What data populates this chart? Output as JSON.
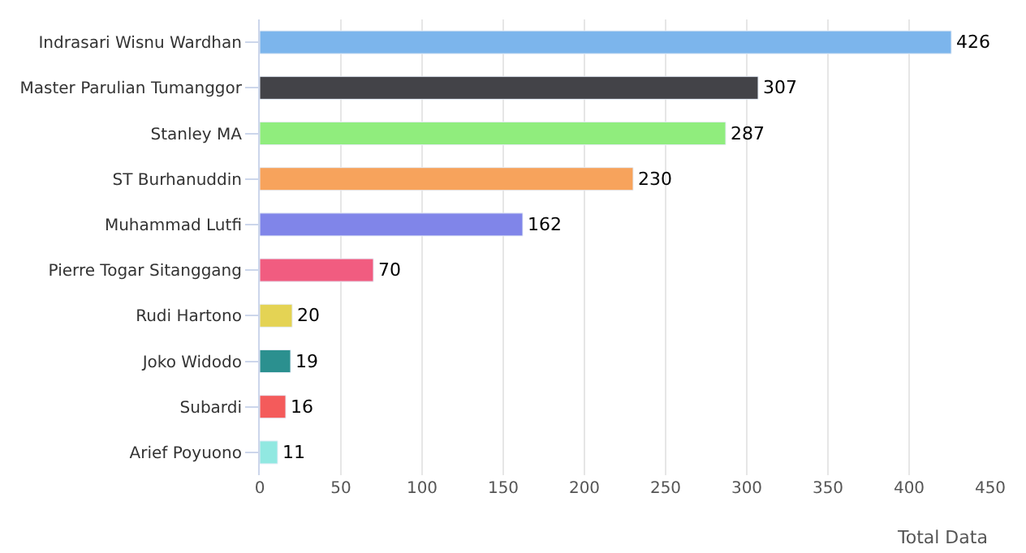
{
  "chart_data": {
    "type": "bar",
    "orientation": "horizontal",
    "xlabel": "Total Data",
    "categories": [
      "Indrasari Wisnu Wardhan",
      "Master Parulian Tumanggor",
      "Stanley MA",
      "ST Burhanuddin",
      "Muhammad Lutfi",
      "Pierre Togar Sitanggang",
      "Rudi Hartono",
      "Joko Widodo",
      "Subardi",
      "Arief Poyuono"
    ],
    "values": [
      426,
      307,
      287,
      230,
      162,
      70,
      20,
      19,
      16,
      11
    ],
    "colors": [
      "#7cb5ec",
      "#434348",
      "#90ed7d",
      "#f7a35c",
      "#8085e9",
      "#f15c80",
      "#e4d354",
      "#2b908f",
      "#f45b5b",
      "#91e8e1"
    ],
    "xlim": [
      0,
      450
    ],
    "xticks": [
      0,
      50,
      100,
      150,
      200,
      250,
      300,
      350,
      400,
      450
    ],
    "grid": "x",
    "data_labels": true,
    "legend": false
  }
}
